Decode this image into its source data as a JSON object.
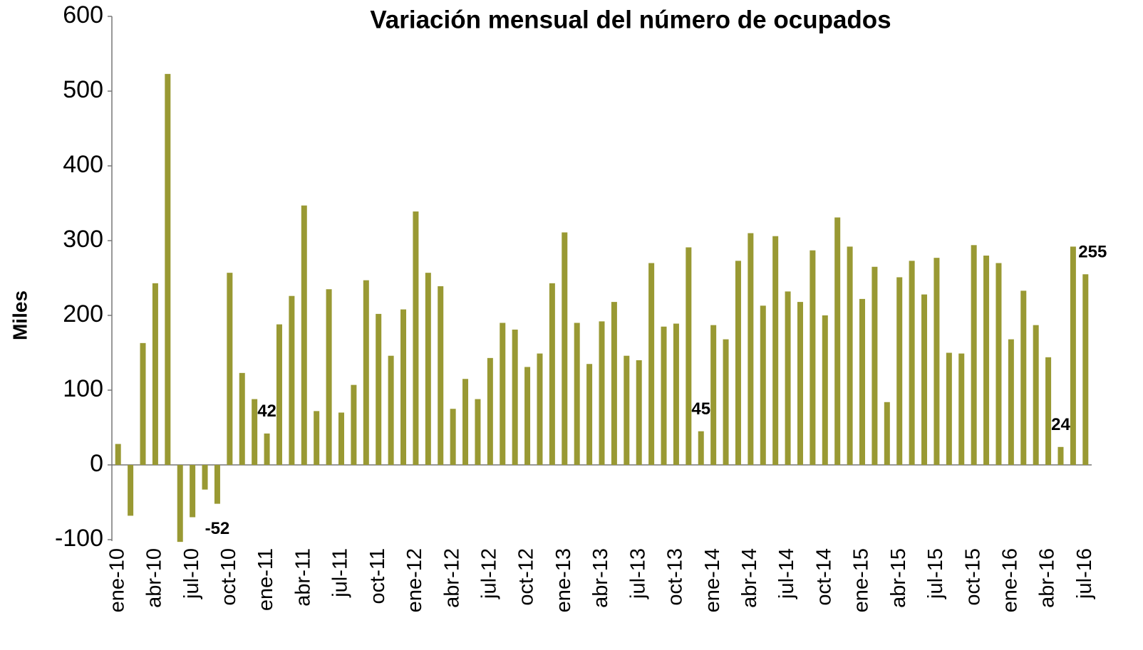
{
  "chart_data": {
    "type": "bar",
    "title": "Variación mensual del número de ocupados",
    "y_label": "Miles",
    "categories": [
      "ene-10",
      null,
      null,
      "abr-10",
      null,
      null,
      "jul-10",
      null,
      null,
      "oct-10",
      null,
      null,
      "ene-11",
      null,
      null,
      "abr-11",
      null,
      null,
      "jul-11",
      null,
      null,
      "oct-11",
      null,
      null,
      "ene-12",
      null,
      null,
      "abr-12",
      null,
      null,
      "jul-12",
      null,
      null,
      "oct-12",
      null,
      null,
      "ene-13",
      null,
      null,
      "abr-13",
      null,
      null,
      "jul-13",
      null,
      null,
      "oct-13",
      null,
      null,
      "ene-14",
      null,
      null,
      "abr-14",
      null,
      null,
      "jul-14",
      null,
      null,
      "oct-14",
      null,
      null,
      "ene-15",
      null,
      null,
      "abr-15",
      null,
      null,
      "jul-15",
      null,
      null,
      "oct-15",
      null,
      null,
      "ene-16",
      null,
      null,
      "abr-16",
      null,
      null,
      "jul-16"
    ],
    "values": [
      28,
      -68,
      163,
      243,
      523,
      -103,
      -70,
      -33,
      -52,
      257,
      123,
      88,
      42,
      188,
      226,
      347,
      72,
      235,
      70,
      107,
      247,
      202,
      146,
      208,
      339,
      257,
      239,
      75,
      115,
      88,
      143,
      190,
      181,
      131,
      149,
      243,
      311,
      190,
      135,
      192,
      218,
      146,
      140,
      270,
      185,
      189,
      291,
      45,
      187,
      168,
      273,
      310,
      213,
      306,
      232,
      218,
      287,
      200,
      331,
      292,
      222,
      265,
      84,
      251,
      273,
      228,
      277,
      150,
      149,
      294,
      280,
      270,
      168,
      233,
      187,
      144,
      24,
      292,
      255
    ],
    "value_labels": [
      null,
      null,
      null,
      null,
      null,
      null,
      null,
      null,
      "-52",
      null,
      null,
      null,
      "42",
      null,
      null,
      null,
      null,
      null,
      null,
      null,
      null,
      null,
      null,
      null,
      null,
      null,
      null,
      null,
      null,
      null,
      null,
      null,
      null,
      null,
      null,
      null,
      null,
      null,
      null,
      null,
      null,
      null,
      null,
      null,
      null,
      null,
      null,
      "45",
      null,
      null,
      null,
      null,
      null,
      null,
      null,
      null,
      null,
      null,
      null,
      null,
      null,
      null,
      null,
      null,
      null,
      null,
      null,
      null,
      null,
      null,
      null,
      null,
      null,
      null,
      null,
      null,
      "24",
      null,
      "255"
    ],
    "color": "#999933",
    "ylim": [
      -100,
      600
    ],
    "yticks": [
      -100,
      0,
      100,
      200,
      300,
      400,
      500,
      600
    ],
    "grid": false
  }
}
